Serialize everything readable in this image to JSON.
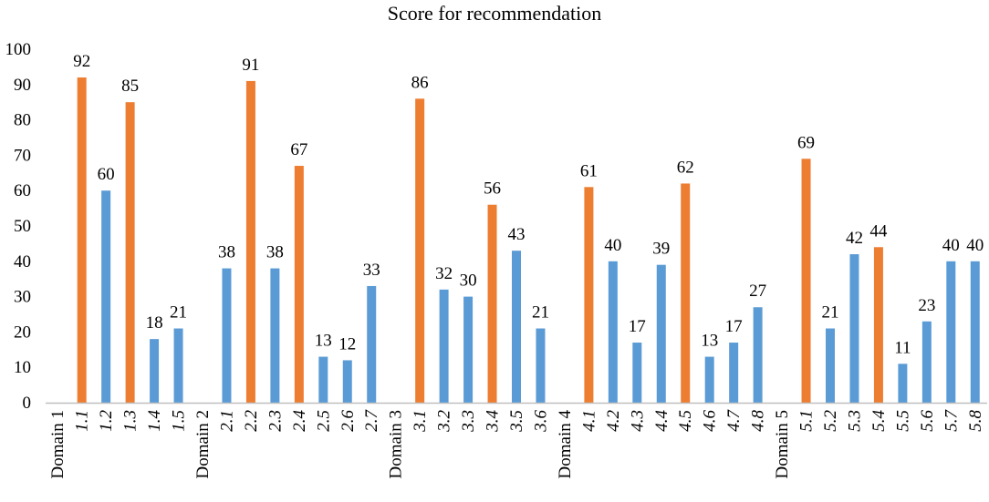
{
  "chart_data": {
    "type": "bar",
    "title": "Score for recommendation",
    "xlabel": "",
    "ylabel": "",
    "ylim": [
      0,
      100
    ],
    "yticks": [
      0,
      10,
      20,
      30,
      40,
      50,
      60,
      70,
      80,
      90,
      100
    ],
    "grid": false,
    "colors": {
      "highlight": "#ED7D31",
      "normal": "#5B9BD5",
      "axis": "#BFBFBF"
    },
    "categories": [
      "Domain 1",
      "1.1",
      "1.2",
      "1.3",
      "1.4",
      "1.5",
      "Domain 2",
      "2.1",
      "2.2",
      "2.3",
      "2.4",
      "2.5",
      "2.6",
      "2.7",
      "Domain 3",
      "3.1",
      "3.2",
      "3.3",
      "3.4",
      "3.5",
      "3.6",
      "Domain 4",
      "4.1",
      "4.2",
      "4.3",
      "4.4",
      "4.5",
      "4.6",
      "4.7",
      "4.8",
      "Domain 5",
      "5.1",
      "5.2",
      "5.3",
      "5.4",
      "5.5",
      "5.6",
      "5.7",
      "5.8"
    ],
    "values": [
      null,
      92,
      60,
      85,
      18,
      21,
      null,
      38,
      91,
      38,
      67,
      13,
      12,
      33,
      null,
      86,
      32,
      30,
      56,
      43,
      21,
      null,
      61,
      40,
      17,
      39,
      62,
      13,
      17,
      27,
      null,
      69,
      21,
      42,
      44,
      11,
      23,
      40,
      40
    ],
    "highlighted": [
      false,
      true,
      false,
      true,
      false,
      false,
      false,
      false,
      true,
      false,
      true,
      false,
      false,
      false,
      false,
      true,
      false,
      false,
      true,
      false,
      false,
      false,
      true,
      false,
      false,
      false,
      true,
      false,
      false,
      false,
      false,
      true,
      false,
      false,
      true,
      false,
      false,
      false,
      false
    ]
  }
}
